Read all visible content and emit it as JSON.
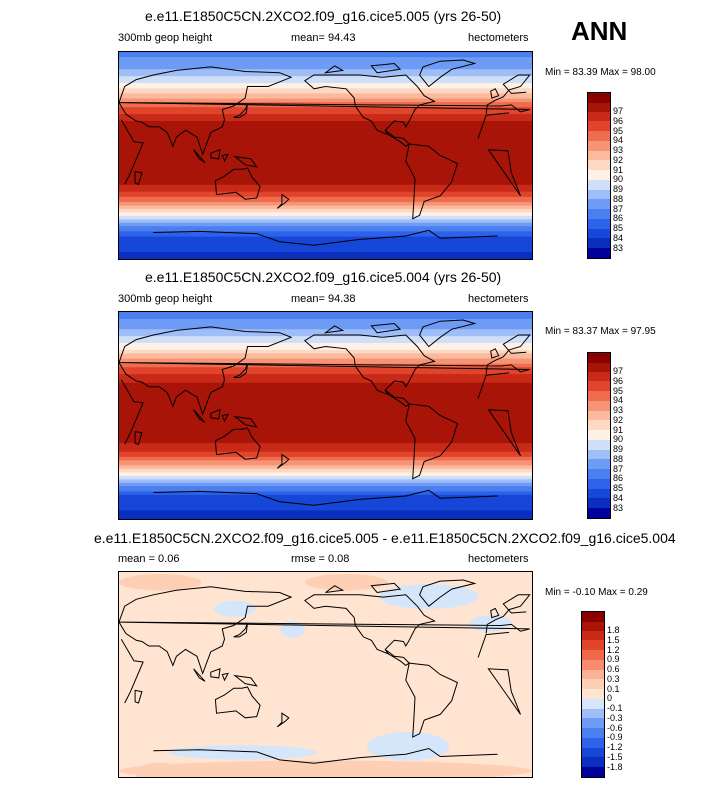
{
  "ann_label": "ANN",
  "colors": {
    "ref_scale": [
      "#00009a",
      "#0a2fbf",
      "#1647d8",
      "#2d62ea",
      "#4a7ff0",
      "#6d9bf5",
      "#9fbef8",
      "#cfdff8",
      "#fff1e6",
      "#fdd9c3",
      "#fbba9d",
      "#f79476",
      "#ef6d4e",
      "#e0452c",
      "#c92a18",
      "#a81408",
      "#8a0000"
    ],
    "diff_scale": [
      "#00009a",
      "#0a2fbf",
      "#1647d8",
      "#2d62ea",
      "#4a7ff0",
      "#6d9bf5",
      "#9fbef8",
      "#d5e6fa",
      "#ffe4d2",
      "#fdd0b5",
      "#fbb193",
      "#f78d6e",
      "#ef6849",
      "#e0452c",
      "#c92a18",
      "#a81408",
      "#8a0000"
    ],
    "coast": "#000000"
  },
  "chart_data": [
    {
      "type": "heatmap",
      "title": "e.e11.E1850C5CN.2XCO2.f09_g16.cice5.005 (yrs 26-50)",
      "left_label": "300mb geop height",
      "center_label": "mean=  94.43",
      "right_label": "hectometers",
      "minmax": "Min =  83.39 Max =  98.00",
      "mean": 94.43,
      "min": 83.39,
      "max": 98.0,
      "units": "hectometers",
      "colorbar_labels": [
        "83",
        "84",
        "85",
        "86",
        "87",
        "88",
        "89",
        "90",
        "91",
        "92",
        "93",
        "94",
        "95",
        "96",
        "97"
      ],
      "band_profile": {
        "lat": [
          90,
          75,
          60,
          50,
          40,
          30,
          20,
          0,
          -20,
          -30,
          -40,
          -50,
          -60,
          -70,
          -90
        ],
        "value": [
          86.5,
          88.0,
          90.5,
          93.0,
          95.5,
          97.0,
          97.8,
          98.0,
          97.6,
          96.5,
          94.0,
          91.0,
          87.5,
          85.0,
          83.5
        ]
      }
    },
    {
      "type": "heatmap",
      "title": "e.e11.E1850C5CN.2XCO2.f09_g16.cice5.004 (yrs 26-50)",
      "left_label": "300mb geop height",
      "center_label": "mean=  94.38",
      "right_label": "hectometers",
      "minmax": "Min =  83.37 Max =  97.95",
      "mean": 94.38,
      "min": 83.37,
      "max": 97.95,
      "units": "hectometers",
      "colorbar_labels": [
        "83",
        "84",
        "85",
        "86",
        "87",
        "88",
        "89",
        "90",
        "91",
        "92",
        "93",
        "94",
        "95",
        "96",
        "97"
      ],
      "band_profile": {
        "lat": [
          90,
          75,
          60,
          50,
          40,
          30,
          20,
          0,
          -20,
          -30,
          -40,
          -50,
          -60,
          -70,
          -90
        ],
        "value": [
          86.4,
          87.9,
          90.4,
          92.9,
          95.4,
          96.9,
          97.7,
          97.95,
          97.5,
          96.4,
          93.9,
          90.9,
          87.4,
          84.9,
          83.4
        ]
      }
    },
    {
      "type": "heatmap",
      "title": "e.e11.E1850C5CN.2XCO2.f09_g16.cice5.005 - e.e11.E1850C5CN.2XCO2.f09_g16.cice5.004",
      "left_label": "mean =   0.06",
      "center_label": "rmse =   0.08",
      "right_label": "hectometers",
      "minmax": "Min =  -0.10 Max =   0.29",
      "mean": 0.06,
      "rmse": 0.08,
      "min": -0.1,
      "max": 0.29,
      "units": "hectometers",
      "colorbar_labels": [
        "-1.8",
        "-1.5",
        "-1.2",
        "-0.9",
        "-0.6",
        "-0.3",
        "-0.1",
        "0",
        "0.1",
        "0.3",
        "0.6",
        "0.9",
        "1.2",
        "1.5",
        "1.8"
      ]
    }
  ]
}
